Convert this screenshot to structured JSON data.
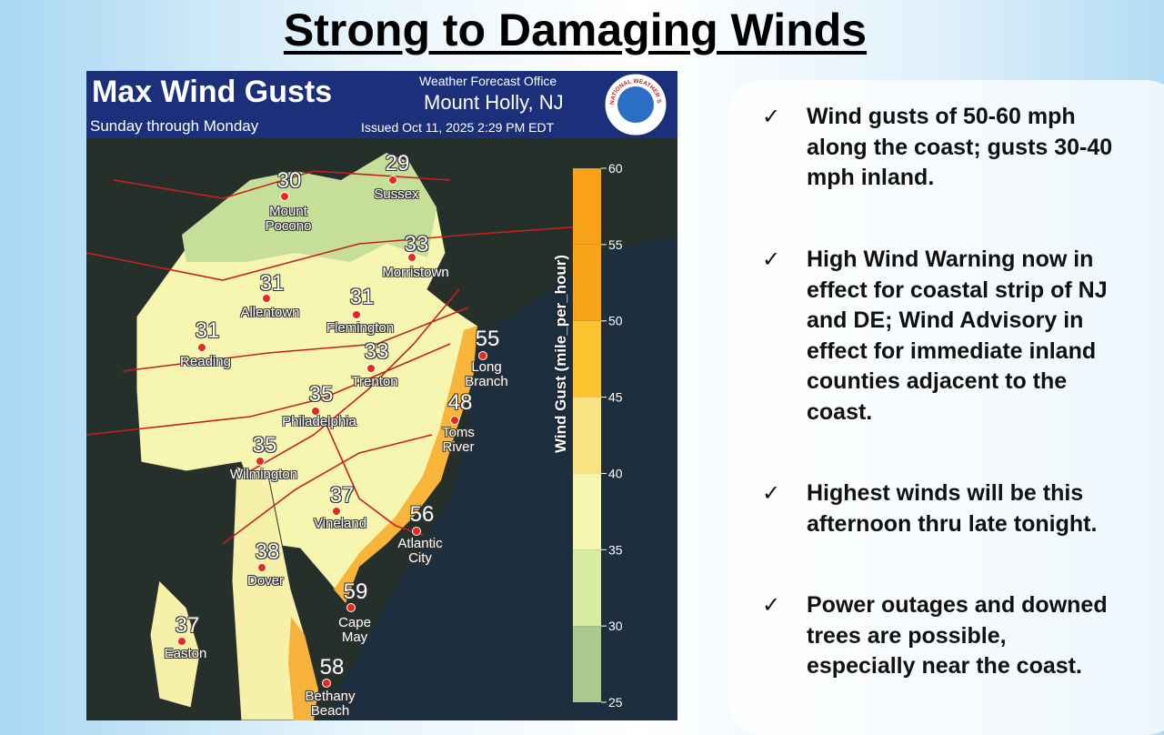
{
  "title": "Strong to Damaging Winds",
  "map": {
    "title": "Max Wind Gusts",
    "subtitle": "Sunday through Monday",
    "office_label": "Weather Forecast Office",
    "office": "Mount Holly, NJ",
    "issued": "Issued Oct 11, 2025 2:29 PM EDT",
    "logo_text": "NATIONAL WEATHER SERVICE",
    "locations": [
      {
        "name": "Mount Pocono",
        "value": 30
      },
      {
        "name": "Sussex",
        "value": 29
      },
      {
        "name": "Morristown",
        "value": 33
      },
      {
        "name": "Allentown",
        "value": 31
      },
      {
        "name": "Flemington",
        "value": 31
      },
      {
        "name": "Reading",
        "value": 31
      },
      {
        "name": "Trenton",
        "value": 33
      },
      {
        "name": "Long Branch",
        "value": 55
      },
      {
        "name": "Philadelphia",
        "value": 35
      },
      {
        "name": "Toms River",
        "value": 48
      },
      {
        "name": "Wilmington",
        "value": 35
      },
      {
        "name": "Vineland",
        "value": 37
      },
      {
        "name": "Atlantic City",
        "value": 56
      },
      {
        "name": "Dover",
        "value": 38
      },
      {
        "name": "Cape May",
        "value": 59
      },
      {
        "name": "Easton",
        "value": 37
      },
      {
        "name": "Bethany Beach",
        "value": 58
      }
    ],
    "legend": {
      "label": "Wind Gust (mile_per_hour)",
      "ticks": [
        25,
        30,
        35,
        40,
        45,
        50,
        55,
        60
      ],
      "colors": [
        "#a9c98f",
        "#d7eba3",
        "#f6f6b0",
        "#f8e282",
        "#fcc430",
        "#f9a51c",
        "#f8a21a"
      ]
    }
  },
  "bullets": [
    "Wind gusts of 50-60 mph along the coast; gusts 30-40 mph inland.",
    "High Wind Warning now in effect for coastal strip of NJ and DE; Wind Advisory in effect for immediate inland counties adjacent to the coast.",
    "Highest winds will be this afternoon thru late tonight.",
    "Power outages and downed trees are possible, especially near the coast."
  ]
}
